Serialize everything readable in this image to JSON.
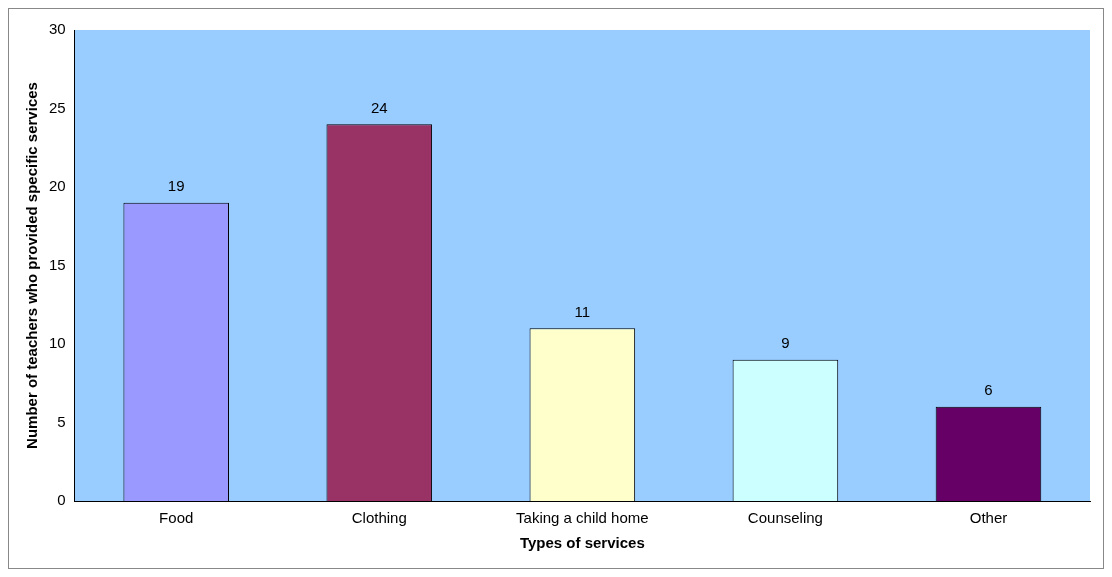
{
  "chart_data": {
    "type": "bar",
    "xlabel": "Types of services",
    "ylabel": "Number of teachers who provided specific services",
    "categories": [
      "Food",
      "Clothing",
      "Taking a child home",
      "Counseling",
      "Other"
    ],
    "values": [
      19,
      24,
      11,
      9,
      6
    ],
    "colors": [
      "#9999ff",
      "#993366",
      "#ffffcc",
      "#ccffff",
      "#660066"
    ],
    "ylim": [
      0,
      30
    ],
    "yticks": [
      0,
      5,
      10,
      15,
      20,
      25,
      30
    ],
    "grid": false,
    "legend": false,
    "data_labels": true
  }
}
